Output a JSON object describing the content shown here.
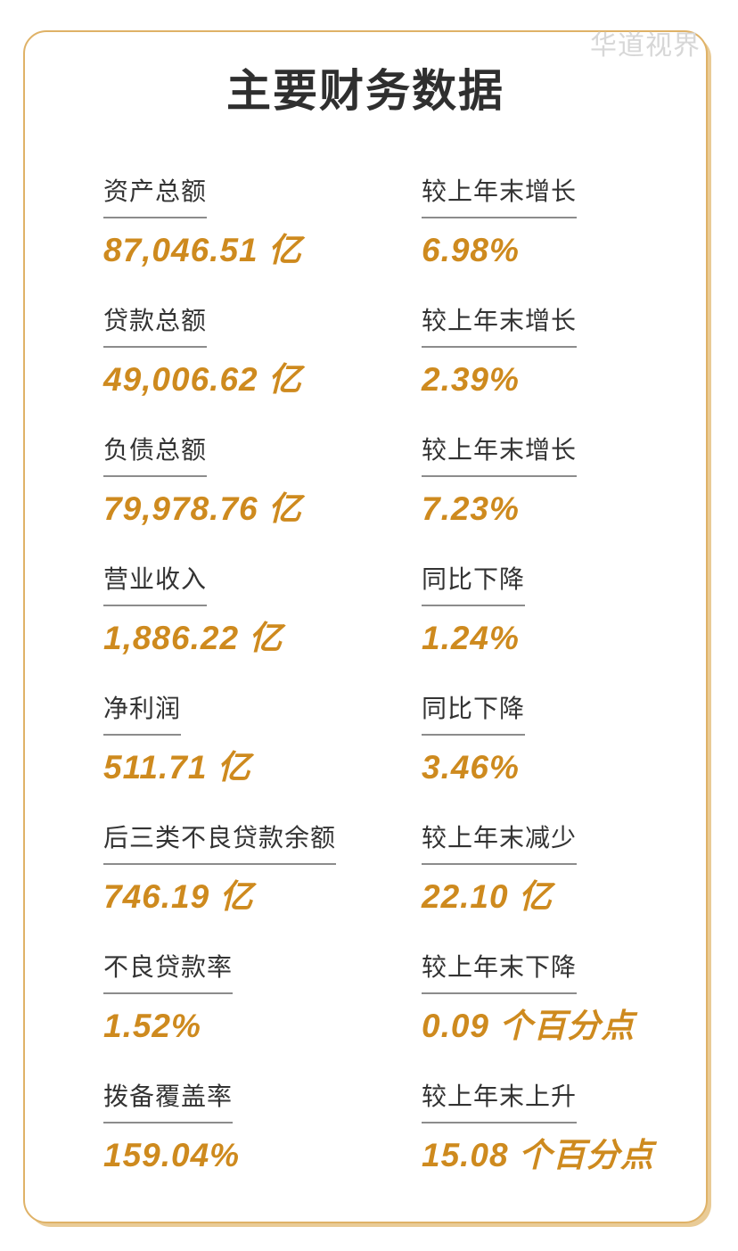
{
  "watermark": "华道视界",
  "title": "主要财务数据",
  "colors": {
    "accent_value": "#ce8a1e",
    "card_border": "#dfb267",
    "card_border_shadow": "#e9cb96",
    "label_text": "#333333",
    "label_underline": "#8c8c8c",
    "title_text": "#2f2f2f",
    "watermark_text": "#d7d7d7",
    "background": "#ffffff"
  },
  "rows": [
    {
      "metric": "资产总额",
      "value": "87,046.51 亿",
      "change_label": "较上年末增长",
      "change_value": "6.98%"
    },
    {
      "metric": "贷款总额",
      "value": "49,006.62 亿",
      "change_label": "较上年末增长",
      "change_value": "2.39%"
    },
    {
      "metric": "负债总额",
      "value": "79,978.76 亿",
      "change_label": "较上年末增长",
      "change_value": "7.23%"
    },
    {
      "metric": "营业收入",
      "value": "1,886.22 亿",
      "change_label": "同比下降",
      "change_value": "1.24%"
    },
    {
      "metric": "净利润",
      "value": "511.71 亿",
      "change_label": "同比下降",
      "change_value": "3.46%"
    },
    {
      "metric": "后三类不良贷款余额",
      "value": "746.19 亿",
      "change_label": "较上年末减少",
      "change_value": "22.10 亿"
    },
    {
      "metric": "不良贷款率",
      "value": "1.52%",
      "change_label": "较上年末下降",
      "change_value": "0.09 个百分点"
    },
    {
      "metric": "拨备覆盖率",
      "value": "159.04%",
      "change_label": "较上年末上升",
      "change_value": "15.08 个百分点"
    }
  ]
}
